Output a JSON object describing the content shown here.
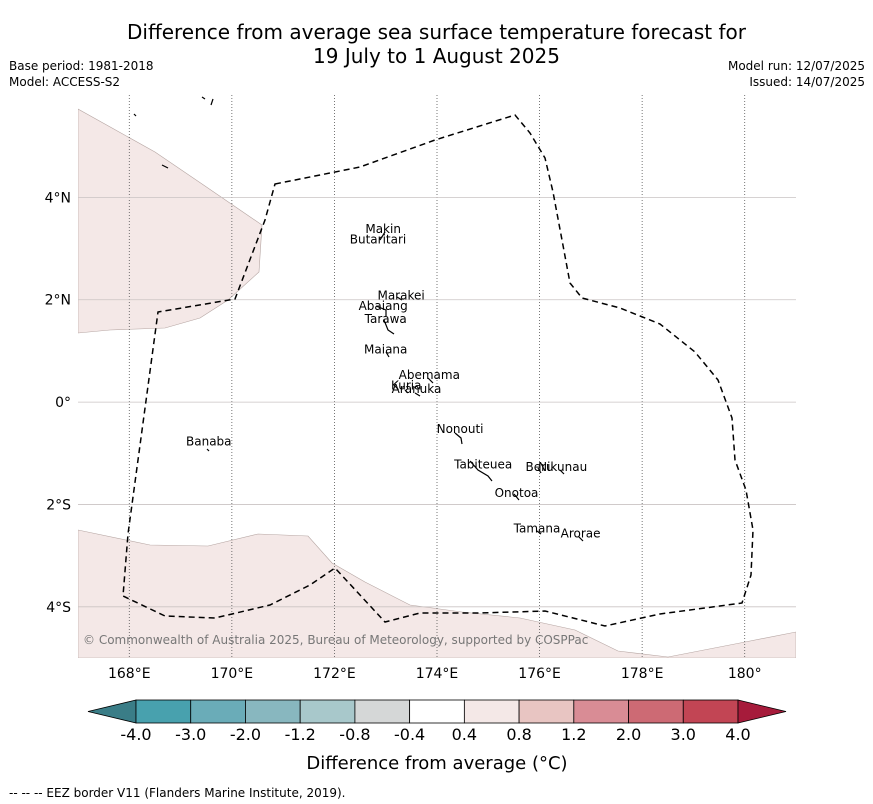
{
  "header": {
    "title_line1": "Difference from average sea surface temperature forecast for",
    "title_line2": "19 July to 1 August 2025",
    "base_period": "Base period: 1981-2018",
    "model": "Model: ACCESS-S2",
    "model_run": "Model run: 12/07/2025",
    "issued": "Issued: 14/07/2025"
  },
  "map": {
    "lon_range": [
      167,
      181
    ],
    "lat_range": [
      -5,
      6
    ],
    "lon_ticks": [
      {
        "value": 168,
        "label": "168°E"
      },
      {
        "value": 170,
        "label": "170°E"
      },
      {
        "value": 172,
        "label": "172°E"
      },
      {
        "value": 174,
        "label": "174°E"
      },
      {
        "value": 176,
        "label": "176°E"
      },
      {
        "value": 178,
        "label": "178°E"
      },
      {
        "value": 180,
        "label": "180°"
      }
    ],
    "lat_ticks": [
      {
        "value": 4,
        "label": "4°N"
      },
      {
        "value": 2,
        "label": "2°N"
      },
      {
        "value": 0,
        "label": "0°"
      },
      {
        "value": -2,
        "label": "2°S"
      },
      {
        "value": -4,
        "label": "4°S"
      }
    ],
    "anomaly_fill_color": "#f4e8e7",
    "anomaly_fill_class": "0.4 to 0.8",
    "islands": [
      {
        "name": "Makin",
        "lon": 172.95,
        "lat": 3.3
      },
      {
        "name": "Butaritari",
        "lon": 172.85,
        "lat": 3.1
      },
      {
        "name": "Marakei",
        "lon": 173.3,
        "lat": 2.0
      },
      {
        "name": "Abaiang",
        "lon": 172.95,
        "lat": 1.8
      },
      {
        "name": "Tarawa",
        "lon": 173.0,
        "lat": 1.55
      },
      {
        "name": "Maiana",
        "lon": 173.0,
        "lat": 0.95
      },
      {
        "name": "Abemama",
        "lon": 173.85,
        "lat": 0.45
      },
      {
        "name": "Kuria",
        "lon": 173.4,
        "lat": 0.25
      },
      {
        "name": "Aranuka",
        "lon": 173.6,
        "lat": 0.18
      },
      {
        "name": "Nonouti",
        "lon": 174.45,
        "lat": -0.6
      },
      {
        "name": "Banaba",
        "lon": 169.55,
        "lat": -0.85
      },
      {
        "name": "Tabiteuea",
        "lon": 174.9,
        "lat": -1.3
      },
      {
        "name": "Beru",
        "lon": 176.0,
        "lat": -1.35
      },
      {
        "name": "Nikunau",
        "lon": 176.45,
        "lat": -1.35
      },
      {
        "name": "Onotoa",
        "lon": 175.55,
        "lat": -1.85
      },
      {
        "name": "Tamana",
        "lon": 175.95,
        "lat": -2.55
      },
      {
        "name": "Arorae",
        "lon": 176.8,
        "lat": -2.65
      }
    ],
    "copyright": "© Commonwealth of Australia 2025, Bureau of Meteorology, supported by COSPPac"
  },
  "colorbar": {
    "label": "Difference from average (°C)",
    "ticks": [
      "-4.0",
      "-3.0",
      "-2.0",
      "-1.2",
      "-0.8",
      "-0.4",
      "0.4",
      "0.8",
      "1.2",
      "2.0",
      "3.0",
      "4.0"
    ],
    "colors": [
      "#3a7d87",
      "#48a1ae",
      "#6aacb8",
      "#88b7bf",
      "#a8c8cb",
      "#d5d7d7",
      "#ffffff",
      "#f4e8e7",
      "#e8c5c2",
      "#d98c95",
      "#cd6a74",
      "#c24554",
      "#a61b3b"
    ]
  },
  "footer": {
    "legend_line": "--  --  -- EEZ border V11 (Flanders Marine Institute, 2019)."
  }
}
